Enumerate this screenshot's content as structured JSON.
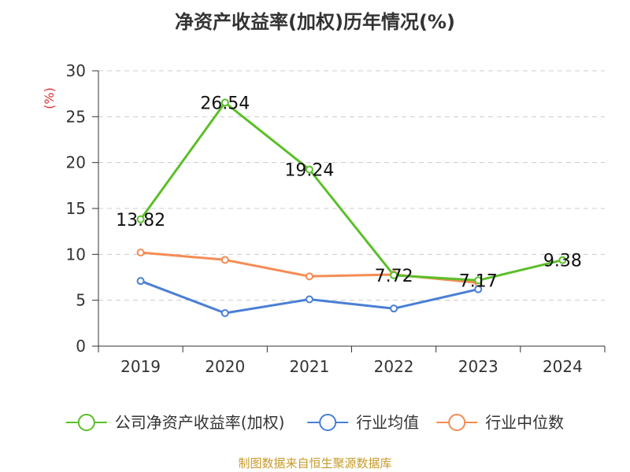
{
  "chart_data": {
    "type": "line",
    "title": "净资产收益率(加权)历年情况(%)",
    "ylabel": "(%)",
    "xlabel": "",
    "categories": [
      "2019",
      "2020",
      "2021",
      "2022",
      "2023",
      "2024"
    ],
    "ylim": [
      0,
      30
    ],
    "yticks": [
      0,
      5,
      10,
      15,
      20,
      25,
      30
    ],
    "grid": true,
    "legend_position": "bottom",
    "series": [
      {
        "name": "公司净资产收益率(加权)",
        "color": "#5cbf2a",
        "values": [
          13.82,
          26.54,
          19.24,
          7.72,
          7.17,
          9.38
        ],
        "labels": [
          "13.82",
          "26.54",
          "19.24",
          "7.72",
          "7.17",
          "9.38"
        ]
      },
      {
        "name": "行业均值",
        "color": "#4a7fd4",
        "values": [
          7.1,
          3.6,
          5.1,
          4.1,
          6.2,
          null
        ]
      },
      {
        "name": "行业中位数",
        "color": "#f58c54",
        "values": [
          10.2,
          9.4,
          7.6,
          7.8,
          6.9,
          null
        ]
      }
    ]
  },
  "source": "制图数据来自恒生聚源数据库"
}
